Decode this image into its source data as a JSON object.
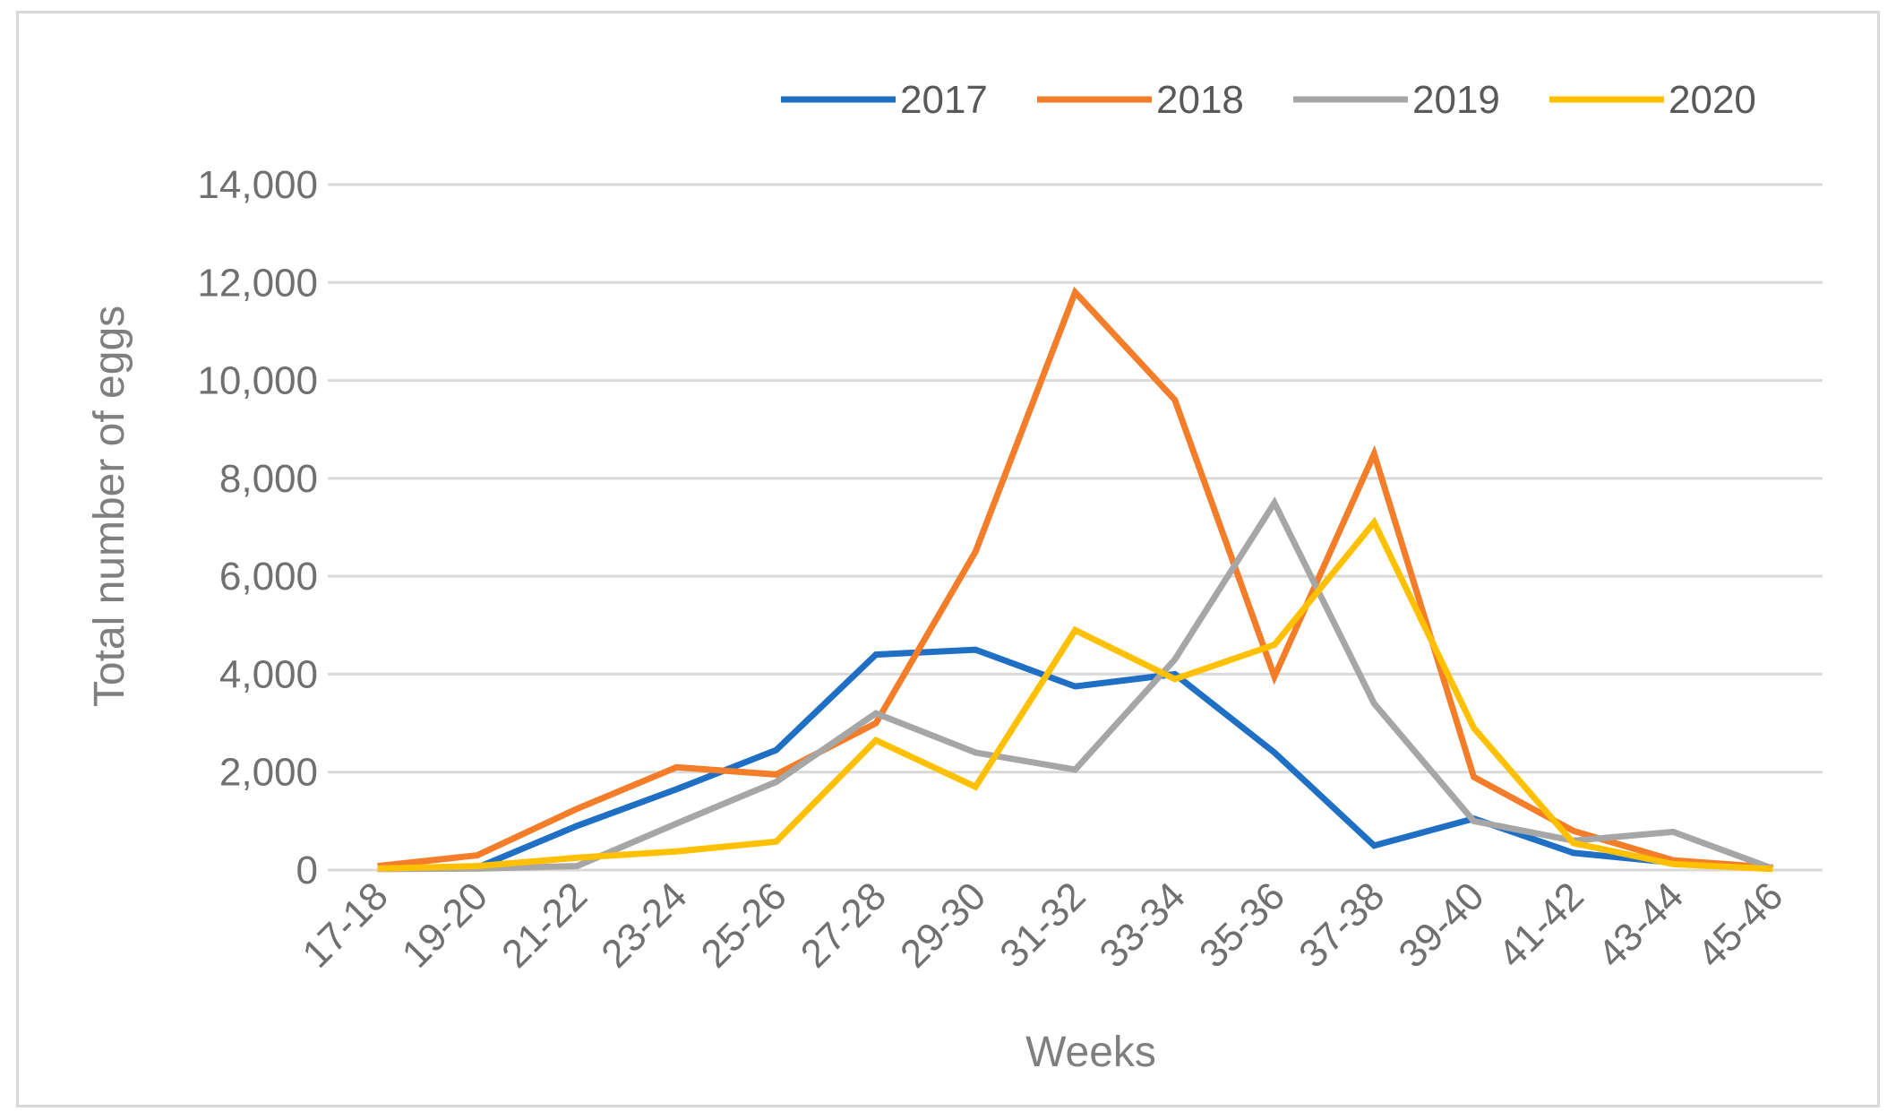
{
  "chart_data": {
    "type": "line",
    "title": "",
    "xlabel": "Weeks",
    "ylabel": "Total number of eggs",
    "ylim": [
      0,
      14000
    ],
    "yticks": [
      0,
      2000,
      4000,
      6000,
      8000,
      10000,
      12000,
      14000
    ],
    "ytick_labels": [
      "0",
      "2,000",
      "4,000",
      "6,000",
      "8,000",
      "10,000",
      "12,000",
      "14,000"
    ],
    "grid": true,
    "legend_position": "top-right",
    "categories": [
      "17-18",
      "19-20",
      "21-22",
      "23-24",
      "25-26",
      "27-28",
      "29-30",
      "31-32",
      "33-34",
      "35-36",
      "37-38",
      "39-40",
      "41-42",
      "43-44",
      "45-46"
    ],
    "series": [
      {
        "name": "2017",
        "color": "#1f6fc5",
        "values": [
          30,
          50,
          900,
          1650,
          2450,
          4400,
          4500,
          3750,
          4000,
          2400,
          500,
          1050,
          350,
          150,
          50
        ]
      },
      {
        "name": "2018",
        "color": "#f47d2a",
        "values": [
          80,
          300,
          1250,
          2100,
          1950,
          3000,
          6500,
          11800,
          9600,
          3950,
          8500,
          1900,
          800,
          200,
          50
        ]
      },
      {
        "name": "2019",
        "color": "#a6a6a6",
        "values": [
          20,
          30,
          80,
          950,
          1800,
          3200,
          2400,
          2050,
          4300,
          7500,
          3400,
          1000,
          600,
          780,
          30
        ]
      },
      {
        "name": "2020",
        "color": "#ffc000",
        "values": [
          30,
          80,
          250,
          380,
          580,
          2650,
          1700,
          4900,
          3900,
          4600,
          7100,
          2900,
          550,
          120,
          20
        ]
      }
    ]
  }
}
